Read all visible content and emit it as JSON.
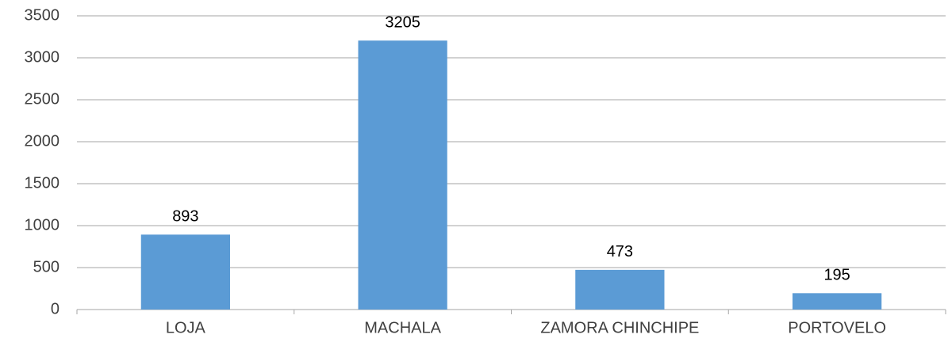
{
  "chart_data": {
    "type": "bar",
    "categories": [
      "LOJA",
      "MACHALA",
      "ZAMORA CHINCHIPE",
      "PORTOVELO"
    ],
    "values": [
      893,
      3205,
      473,
      195
    ],
    "color": "#5b9bd5",
    "ylim": [
      0,
      3500
    ],
    "yticks": [
      0,
      500,
      1000,
      1500,
      2000,
      2500,
      3000,
      3500
    ],
    "grid": true
  }
}
